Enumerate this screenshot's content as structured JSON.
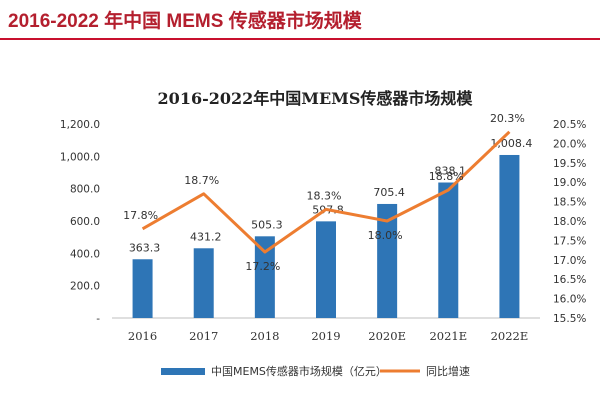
{
  "page": {
    "heading": "2016-2022 年中国 MEMS 传感器市场规模"
  },
  "chart_data": {
    "type": "bar+line",
    "title": "2016-2022年中国MEMS传感器市场规模",
    "categories": [
      "2016",
      "2017",
      "2018",
      "2019",
      "2020E",
      "2021E",
      "2022E"
    ],
    "series": [
      {
        "name": "中国MEMS传感器市场规模（亿元）",
        "type": "bar",
        "axis": "left",
        "color": "#2e75b6",
        "values": [
          363.3,
          431.2,
          505.3,
          597.8,
          705.4,
          838.1,
          1008.4
        ],
        "labels": [
          "363.3",
          "431.2",
          "505.3",
          "597.8",
          "705.4",
          "838.1",
          "1,008.4"
        ]
      },
      {
        "name": "同比增速",
        "type": "line",
        "axis": "right",
        "color": "#ed7d31",
        "values": [
          17.8,
          18.7,
          17.2,
          18.3,
          18.0,
          18.8,
          20.3
        ],
        "labels": [
          "17.8%",
          "18.7%",
          "17.2%",
          "18.3%",
          "18.0%",
          "18.8%",
          "20.3%"
        ]
      }
    ],
    "y_left": {
      "range": [
        0,
        1200
      ],
      "ticks": [
        0,
        200,
        400,
        600,
        800,
        1000,
        1200
      ],
      "tick_labels": [
        "-",
        "200.0",
        "400.0",
        "600.0",
        "800.0",
        "1,000.0",
        "1,200.0"
      ]
    },
    "y_right": {
      "range": [
        15.5,
        20.5
      ],
      "ticks": [
        15.5,
        16.0,
        16.5,
        17.0,
        17.5,
        18.0,
        18.5,
        19.0,
        19.5,
        20.0,
        20.5
      ],
      "tick_labels": [
        "15.5%",
        "16.0%",
        "16.5%",
        "17.0%",
        "17.5%",
        "18.0%",
        "18.5%",
        "19.0%",
        "19.5%",
        "20.0%",
        "20.5%"
      ]
    },
    "grid": false,
    "legend_position": "bottom"
  }
}
